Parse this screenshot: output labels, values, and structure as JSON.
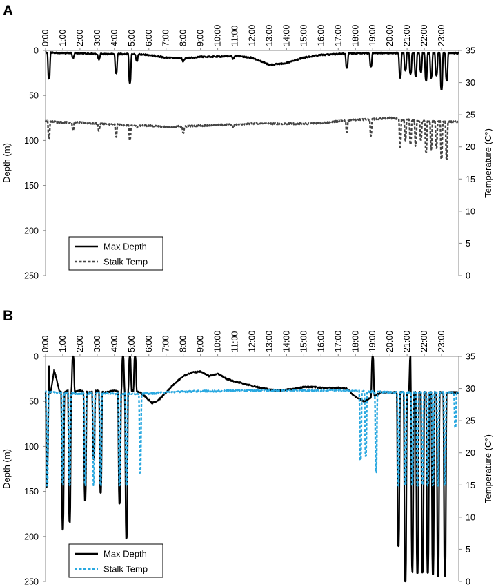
{
  "chart_data": [
    {
      "type": "line",
      "panel_label": "A",
      "x_tick_labels": [
        "0:00",
        "1:00",
        "2:00",
        "3:00",
        "4:00",
        "5:00",
        "6:00",
        "7:00",
        "8:00",
        "9:00",
        "10:00",
        "11:00",
        "12:00",
        "13:00",
        "14:00",
        "15:00",
        "16:00",
        "17:00",
        "18:00",
        "19:00",
        "20:00",
        "21:00",
        "22:00",
        "23:00"
      ],
      "ylabel": "Depth (m)",
      "y2label": "Temperature (C°)",
      "ylim": [
        0,
        250
      ],
      "y_ticks": [
        0,
        50,
        100,
        150,
        200,
        250
      ],
      "y2lim": [
        0,
        35
      ],
      "y2_ticks": [
        0,
        5,
        10,
        15,
        20,
        25,
        30,
        35
      ],
      "grid": false,
      "legend": {
        "position": "bottom-left"
      },
      "colors": {
        "depth": "#000000",
        "temp": "#444444"
      },
      "series": [
        {
          "name": "Max Depth",
          "axis": "left",
          "style": "solid",
          "baseline": [
            [
              0,
              2
            ],
            [
              1,
              3
            ],
            [
              2,
              3
            ],
            [
              3,
              4
            ],
            [
              4,
              4
            ],
            [
              5,
              4
            ],
            [
              6,
              5
            ],
            [
              7,
              8
            ],
            [
              8,
              9
            ],
            [
              9,
              7
            ],
            [
              10,
              7
            ],
            [
              11,
              6
            ],
            [
              12,
              8
            ],
            [
              13,
              16
            ],
            [
              14,
              14
            ],
            [
              15,
              8
            ],
            [
              16,
              5
            ],
            [
              17,
              4
            ],
            [
              18,
              3
            ],
            [
              19,
              3
            ],
            [
              20,
              3
            ],
            [
              21,
              3
            ],
            [
              22,
              3
            ],
            [
              23,
              3
            ],
            [
              24,
              3
            ]
          ],
          "spikes": [
            [
              0.2,
              31
            ],
            [
              1.6,
              8
            ],
            [
              3.1,
              10
            ],
            [
              4.1,
              25
            ],
            [
              4.9,
              36
            ],
            [
              5.3,
              12
            ],
            [
              8.0,
              12
            ],
            [
              10.9,
              9
            ],
            [
              17.5,
              20
            ],
            [
              18.9,
              18
            ],
            [
              20.6,
              30
            ],
            [
              20.9,
              22
            ],
            [
              21.2,
              26
            ],
            [
              21.5,
              28
            ],
            [
              21.8,
              24
            ],
            [
              22.1,
              33
            ],
            [
              22.4,
              30
            ],
            [
              22.7,
              28
            ],
            [
              23.0,
              44
            ],
            [
              23.3,
              33
            ]
          ]
        },
        {
          "name": "Stalk Temp",
          "axis": "right",
          "style": "dashed",
          "baseline": [
            [
              0,
              24.0
            ],
            [
              1,
              23.8
            ],
            [
              2,
              23.8
            ],
            [
              3,
              23.6
            ],
            [
              4,
              23.5
            ],
            [
              5,
              23.3
            ],
            [
              6,
              23.3
            ],
            [
              7,
              23.1
            ],
            [
              8,
              23.2
            ],
            [
              9,
              23.3
            ],
            [
              10,
              23.4
            ],
            [
              11,
              23.5
            ],
            [
              12,
              23.6
            ],
            [
              13,
              23.6
            ],
            [
              14,
              23.6
            ],
            [
              15,
              23.6
            ],
            [
              16,
              23.7
            ],
            [
              17,
              24.0
            ],
            [
              18,
              24.2
            ],
            [
              19,
              24.3
            ],
            [
              20,
              24.5
            ],
            [
              21,
              24.2
            ],
            [
              22,
              24.0
            ],
            [
              23,
              23.9
            ],
            [
              24,
              23.9
            ]
          ],
          "spikes": [
            [
              0.2,
              21.3
            ],
            [
              1.6,
              22.6
            ],
            [
              3.1,
              22.6
            ],
            [
              4.1,
              21.6
            ],
            [
              4.9,
              21.0
            ],
            [
              5.3,
              22.9
            ],
            [
              8.0,
              22.2
            ],
            [
              10.9,
              23.0
            ],
            [
              17.5,
              22.3
            ],
            [
              18.9,
              21.8
            ],
            [
              20.6,
              20.0
            ],
            [
              20.9,
              21.1
            ],
            [
              21.2,
              20.5
            ],
            [
              21.5,
              20.2
            ],
            [
              21.8,
              21.0
            ],
            [
              22.1,
              19.2
            ],
            [
              22.4,
              19.7
            ],
            [
              22.7,
              19.9
            ],
            [
              23.0,
              18.2
            ],
            [
              23.3,
              18.2
            ]
          ]
        }
      ]
    },
    {
      "type": "line",
      "panel_label": "B",
      "x_tick_labels": [
        "0:00",
        "1:00",
        "2:00",
        "3:00",
        "4:00",
        "5:00",
        "6:00",
        "7:00",
        "8:00",
        "9:00",
        "10:00",
        "11:00",
        "12:00",
        "13:00",
        "14:00",
        "15:00",
        "16:00",
        "17:00",
        "18:00",
        "19:00",
        "20:00",
        "21:00",
        "22:00",
        "23:00"
      ],
      "ylabel": "Depth (m)",
      "y2label": "Temperature (C°)",
      "ylim": [
        0,
        250
      ],
      "y_ticks": [
        0,
        50,
        100,
        150,
        200,
        250
      ],
      "y2lim": [
        0,
        35
      ],
      "y2_ticks": [
        0,
        5,
        10,
        15,
        20,
        25,
        30,
        35
      ],
      "grid": false,
      "legend": {
        "position": "bottom-left"
      },
      "colors": {
        "depth": "#000000",
        "temp": "#29a8e0"
      },
      "series": [
        {
          "name": "Max Depth",
          "axis": "left",
          "style": "solid",
          "baseline": [
            [
              0,
              40
            ],
            [
              0.3,
              40
            ],
            [
              0.5,
              15
            ],
            [
              0.8,
              38
            ],
            [
              1.0,
              40
            ],
            [
              1.3,
              38
            ],
            [
              1.6,
              40
            ],
            [
              2.0,
              38
            ],
            [
              2.5,
              40
            ],
            [
              3.0,
              38
            ],
            [
              3.5,
              40
            ],
            [
              4.0,
              38
            ],
            [
              4.5,
              40
            ],
            [
              5.0,
              38
            ],
            [
              5.5,
              40
            ],
            [
              5.8,
              45
            ],
            [
              6.2,
              52
            ],
            [
              6.6,
              48
            ],
            [
              7.0,
              40
            ],
            [
              7.5,
              30
            ],
            [
              8.0,
              22
            ],
            [
              8.5,
              18
            ],
            [
              9.0,
              17
            ],
            [
              9.5,
              22
            ],
            [
              10.0,
              19
            ],
            [
              10.5,
              25
            ],
            [
              11.0,
              28
            ],
            [
              11.5,
              30
            ],
            [
              12.0,
              33
            ],
            [
              12.5,
              35
            ],
            [
              13.0,
              37
            ],
            [
              13.5,
              38
            ],
            [
              14.0,
              37
            ],
            [
              14.5,
              36
            ],
            [
              15.0,
              34
            ],
            [
              15.5,
              34
            ],
            [
              16.0,
              35
            ],
            [
              16.5,
              35
            ],
            [
              17.0,
              35
            ],
            [
              17.5,
              36
            ],
            [
              18.0,
              45
            ],
            [
              18.5,
              50
            ],
            [
              19.0,
              45
            ],
            [
              19.5,
              40
            ],
            [
              20.0,
              40
            ],
            [
              21.0,
              40
            ],
            [
              22.0,
              40
            ],
            [
              23.0,
              40
            ],
            [
              24.0,
              40
            ]
          ],
          "spikes": [
            [
              0.1,
              158
            ],
            [
              1.0,
              192
            ],
            [
              1.4,
              184
            ],
            [
              2.3,
              160
            ],
            [
              2.8,
              153
            ],
            [
              3.2,
              151
            ],
            [
              4.3,
              163
            ],
            [
              4.7,
              202
            ],
            [
              20.5,
              210
            ],
            [
              20.9,
              251
            ],
            [
              21.3,
              240
            ],
            [
              21.6,
              240
            ],
            [
              21.9,
              240
            ],
            [
              22.2,
              240
            ],
            [
              22.5,
              242
            ],
            [
              22.8,
              244
            ],
            [
              23.2,
              244
            ]
          ],
          "tops": [
            [
              0.15,
              0
            ],
            [
              1.6,
              0
            ],
            [
              2.8,
              0
            ],
            [
              4.5,
              0
            ],
            [
              4.9,
              0
            ],
            [
              5.2,
              0
            ],
            [
              19.0,
              0
            ],
            [
              21.2,
              0
            ]
          ]
        },
        {
          "name": "Stalk Temp",
          "axis": "right",
          "style": "dashed",
          "baseline": [
            [
              0,
              29.5
            ],
            [
              1,
              29.3
            ],
            [
              2,
              29.2
            ],
            [
              3,
              29.3
            ],
            [
              4,
              29.2
            ],
            [
              5,
              29.2
            ],
            [
              6,
              29.2
            ],
            [
              7,
              29.4
            ],
            [
              8,
              29.5
            ],
            [
              9,
              29.6
            ],
            [
              10,
              29.6
            ],
            [
              11,
              29.7
            ],
            [
              12,
              29.7
            ],
            [
              13,
              29.7
            ],
            [
              14,
              29.7
            ],
            [
              15,
              29.7
            ],
            [
              16,
              29.7
            ],
            [
              17,
              29.7
            ],
            [
              18,
              29.6
            ],
            [
              19,
              29.5
            ],
            [
              20,
              29.4
            ],
            [
              21,
              29.4
            ],
            [
              22,
              29.4
            ],
            [
              23,
              29.4
            ],
            [
              24,
              29.3
            ]
          ],
          "spikes": [
            [
              0.1,
              15.0
            ],
            [
              1.0,
              15.0
            ],
            [
              1.4,
              15.0
            ],
            [
              2.3,
              15.0
            ],
            [
              2.8,
              15.0
            ],
            [
              3.2,
              15.0
            ],
            [
              4.3,
              15.0
            ],
            [
              4.7,
              15.0
            ],
            [
              5.5,
              17.0
            ],
            [
              18.3,
              19.0
            ],
            [
              18.6,
              19.5
            ],
            [
              19.2,
              17.0
            ],
            [
              20.5,
              15.0
            ],
            [
              20.9,
              15.0
            ],
            [
              21.3,
              15.0
            ],
            [
              21.6,
              15.0
            ],
            [
              21.9,
              15.0
            ],
            [
              22.2,
              15.0
            ],
            [
              22.5,
              15.0
            ],
            [
              22.8,
              15.0
            ],
            [
              23.2,
              15.0
            ],
            [
              23.8,
              24.0
            ]
          ]
        }
      ]
    }
  ]
}
